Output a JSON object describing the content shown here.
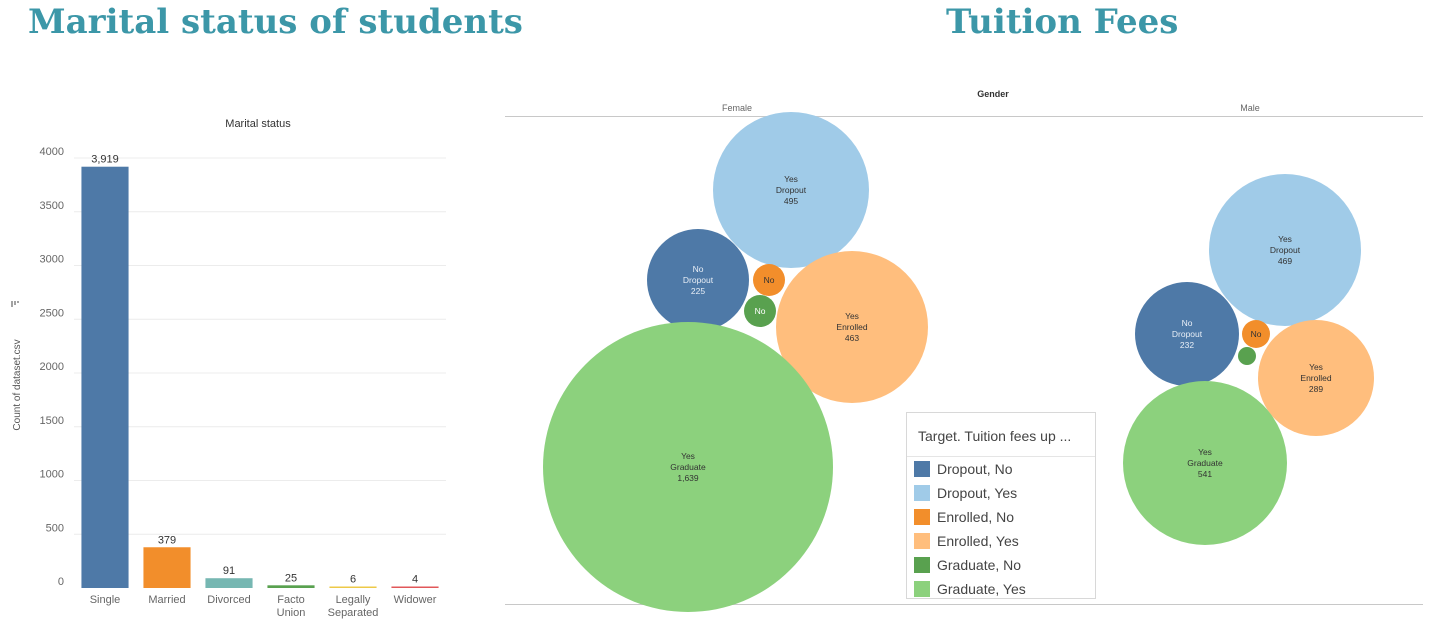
{
  "bar_panel": {
    "title": "Marital status of students"
  },
  "bubble_panel": {
    "title": "Tuition Fees"
  },
  "chart_data": [
    {
      "type": "bar",
      "title": "Marital status",
      "xlabel": "",
      "ylabel": "Count of dataset.csv",
      "ylim": [
        0,
        4000
      ],
      "yticks": [
        0,
        500,
        1000,
        1500,
        2000,
        2500,
        3000,
        3500,
        4000
      ],
      "grid": true,
      "categories": [
        "Single",
        "Married",
        "Divorced",
        "Facto Union",
        "Legally Separated",
        "Widower"
      ],
      "category_lines": [
        [
          "Single"
        ],
        [
          "Married"
        ],
        [
          "Divorced"
        ],
        [
          "Facto",
          "Union"
        ],
        [
          "Legally",
          "Separated"
        ],
        [
          "Widower"
        ]
      ],
      "values": [
        3919,
        379,
        91,
        25,
        6,
        4
      ],
      "value_labels": [
        "3,919",
        "379",
        "91",
        "25",
        "6",
        "4"
      ],
      "colors": [
        "#4e79a7",
        "#f28e2b",
        "#76b7b2",
        "#59a14f",
        "#edc948",
        "#e15759"
      ]
    },
    {
      "type": "bubble",
      "title": "Gender",
      "facets": [
        "Female",
        "Male"
      ],
      "color_legend_title": "Target. Tuition fees up ...",
      "categories": [
        {
          "key": "dropout_no",
          "label": "Dropout, No",
          "color": "#4e79a7"
        },
        {
          "key": "dropout_yes",
          "label": "Dropout, Yes",
          "color": "#a0cbe8"
        },
        {
          "key": "enrolled_no",
          "label": "Enrolled, No",
          "color": "#f28e2b"
        },
        {
          "key": "enrolled_yes",
          "label": "Enrolled, Yes",
          "color": "#ffbe7d"
        },
        {
          "key": "graduate_no",
          "label": "Graduate, No",
          "color": "#59a14f"
        },
        {
          "key": "graduate_yes",
          "label": "Graduate, Yes",
          "color": "#8cd17d"
        }
      ],
      "series": [
        {
          "name": "Female",
          "bubbles": [
            {
              "key": "dropout_yes",
              "fees": "Yes",
              "target": "Dropout",
              "value": 495,
              "label": "495"
            },
            {
              "key": "dropout_no",
              "fees": "No",
              "target": "Dropout",
              "value": 225,
              "label": "225"
            },
            {
              "key": "enrolled_no",
              "fees": "No",
              "target": "Enrolled",
              "value": null,
              "label": ""
            },
            {
              "key": "graduate_no",
              "fees": "No",
              "target": "Graduate",
              "value": null,
              "label": ""
            },
            {
              "key": "enrolled_yes",
              "fees": "Yes",
              "target": "Enrolled",
              "value": 463,
              "label": "463"
            },
            {
              "key": "graduate_yes",
              "fees": "Yes",
              "target": "Graduate",
              "value": 1639,
              "label": "1,639"
            }
          ]
        },
        {
          "name": "Male",
          "bubbles": [
            {
              "key": "dropout_yes",
              "fees": "Yes",
              "target": "Dropout",
              "value": 469,
              "label": "469"
            },
            {
              "key": "dropout_no",
              "fees": "No",
              "target": "Dropout",
              "value": 232,
              "label": "232"
            },
            {
              "key": "enrolled_no",
              "fees": "No",
              "target": "Enrolled",
              "value": null,
              "label": ""
            },
            {
              "key": "graduate_no",
              "fees": "",
              "target": "Graduate",
              "value": null,
              "label": ""
            },
            {
              "key": "enrolled_yes",
              "fees": "Yes",
              "target": "Enrolled",
              "value": 289,
              "label": "289"
            },
            {
              "key": "graduate_yes",
              "fees": "Yes",
              "target": "Graduate",
              "value": 541,
              "label": "541"
            }
          ]
        }
      ]
    }
  ]
}
